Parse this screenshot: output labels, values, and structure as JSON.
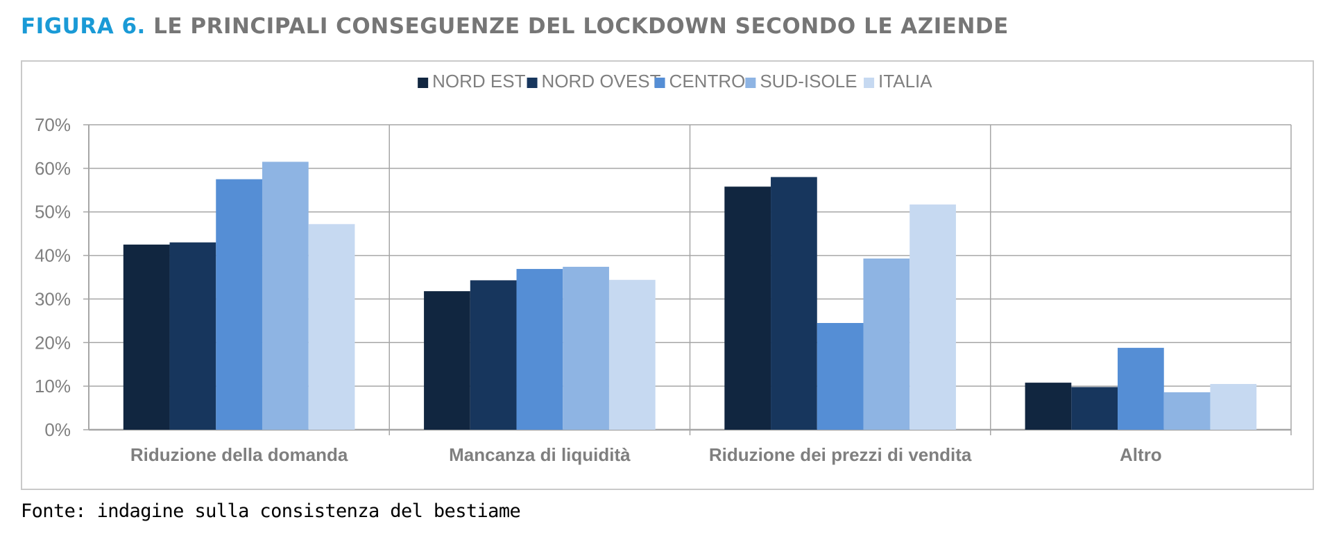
{
  "figure": {
    "label": "FIGURA 6.",
    "title": "LE PRINCIPALI CONSEGUENZE DEL LOCKDOWN SECONDO LE AZIENDE"
  },
  "source": "Fonte: indagine sulla consistenza del bestiame",
  "colors": {
    "NORD EST": "#112640",
    "NORD OVEST": "#17365d",
    "CENTRO": "#558ed5",
    "SUD-ISOLE": "#8eb4e3",
    "ITALIA": "#c6d9f1",
    "grid": "#a6a6a6",
    "tick_text": "#7f7f7f",
    "category_text": "#7f7f7f"
  },
  "chart_data": {
    "type": "bar",
    "categories": [
      "Riduzione della domanda",
      "Mancanza di liquidità",
      "Riduzione dei prezzi di vendita",
      "Altro"
    ],
    "series": [
      {
        "name": "NORD EST",
        "values": [
          42.5,
          31.8,
          55.8,
          10.8
        ]
      },
      {
        "name": "NORD OVEST",
        "values": [
          43.0,
          34.3,
          58.0,
          9.8
        ]
      },
      {
        "name": "CENTRO",
        "values": [
          57.5,
          36.9,
          24.5,
          18.8
        ]
      },
      {
        "name": "SUD-ISOLE",
        "values": [
          61.5,
          37.4,
          39.3,
          8.6
        ]
      },
      {
        "name": "ITALIA",
        "values": [
          47.2,
          34.4,
          51.7,
          10.5
        ]
      }
    ],
    "yticks": [
      "0%",
      "10%",
      "20%",
      "30%",
      "40%",
      "50%",
      "60%",
      "70%"
    ],
    "ylim": [
      0,
      70
    ],
    "grid": true,
    "legend_position": "top-center"
  }
}
